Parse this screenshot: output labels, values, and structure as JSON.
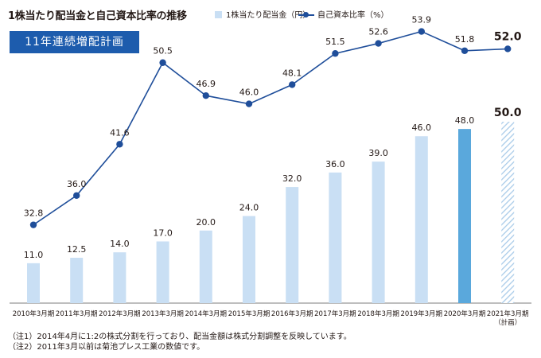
{
  "title": "1株当たり配当金と自己資本比率の推移",
  "legend": {
    "bar_label": "1株当たり配当金（円）",
    "line_label": "自己資本比率（%）"
  },
  "badge": "11年連続増配計画",
  "notes": [
    "（注1）2014年4月に1:2の株式分割を行っており、配当金額は株式分割調整を反映しています。",
    "（注2）2011年3月以前は菊池プレス工業の数値です。"
  ],
  "colors": {
    "bar": "#c9dff4",
    "bar_highlight": "#5aa8dc",
    "bar_plan_hatch": "#a9cbe9",
    "line": "#1f4e9a"
  },
  "chart_data": {
    "type": "bar",
    "categories": [
      "2010年3月期",
      "2011年3月期",
      "2012年3月期",
      "2013年3月期",
      "2014年3月期",
      "2015年3月期",
      "2016年3月期",
      "2017年3月期",
      "2018年3月期",
      "2019年3月期",
      "2020年3月期",
      "2021年3月期"
    ],
    "category_notes": [
      "",
      "",
      "",
      "",
      "",
      "",
      "",
      "",
      "",
      "",
      "",
      "（計画）"
    ],
    "series": [
      {
        "name": "1株当たり配当金（円）",
        "type": "bar",
        "values": [
          11.0,
          12.5,
          14.0,
          17.0,
          20.0,
          24.0,
          32.0,
          36.0,
          39.0,
          46.0,
          48.0,
          50.0
        ],
        "labels": [
          "11.0",
          "12.5",
          "14.0",
          "17.0",
          "20.0",
          "24.0",
          "32.0",
          "36.0",
          "39.0",
          "46.0",
          "48.0",
          "50.0"
        ],
        "highlight_index": 10,
        "plan_index": 11
      },
      {
        "name": "自己資本比率（%）",
        "type": "line",
        "values": [
          32.8,
          36.0,
          41.6,
          50.5,
          46.9,
          46.0,
          48.1,
          51.5,
          52.6,
          53.9,
          51.8,
          52.0
        ],
        "labels": [
          "32.8",
          "36.0",
          "41.6",
          "50.5",
          "46.9",
          "46.0",
          "48.1",
          "51.5",
          "52.6",
          "53.9",
          "51.8",
          "52.0"
        ]
      }
    ],
    "grid": false
  }
}
